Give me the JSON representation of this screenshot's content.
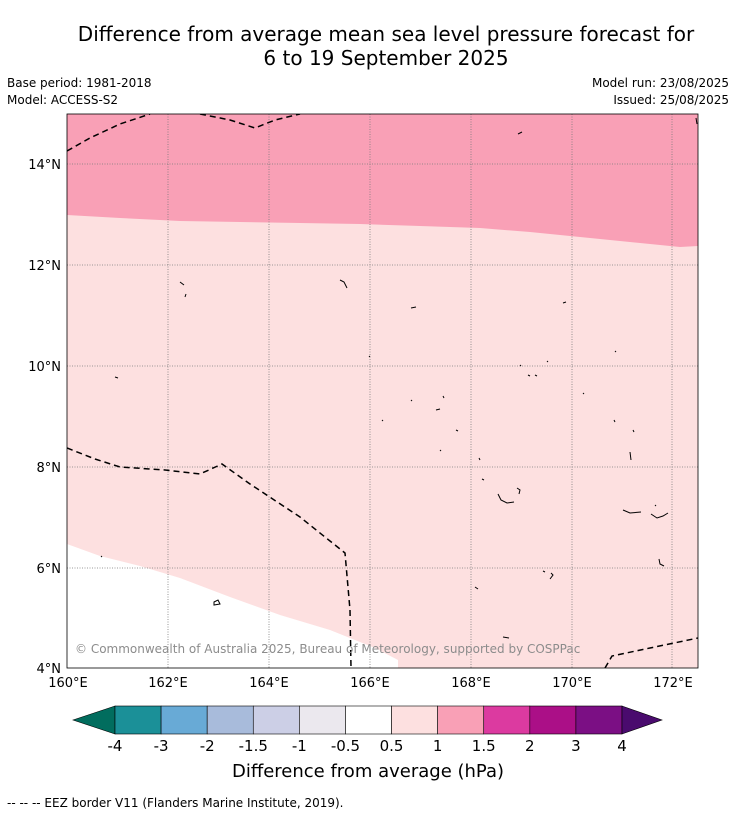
{
  "title_line1": "Difference from average mean sea level pressure forecast for",
  "title_line2": "6 to 19 September 2025",
  "base_period": "Base period: 1981-2018",
  "model": "Model: ACCESS-S2",
  "model_run": "Model run: 23/08/2025",
  "issued": "Issued: 25/08/2025",
  "latitude_labels": [
    "14°N",
    "12°N",
    "10°N",
    "8°N",
    "6°N",
    "4°N"
  ],
  "longitude_labels": [
    "160°E",
    "162°E",
    "164°E",
    "166°E",
    "168°E",
    "170°E",
    "172°E"
  ],
  "copyright": "© Commonwealth of Australia 2025, Bureau of Meteorology, supported by COSPPac",
  "colorbar": {
    "title": "Difference from average (hPa)",
    "tick_labels": [
      "-4",
      "-3",
      "-2",
      "-1.5",
      "-1",
      "-0.5",
      "0.5",
      "1",
      "1.5",
      "2",
      "3",
      "4"
    ],
    "colors": [
      "#1b9098",
      "#68aad6",
      "#a8bbdb",
      "#cccfe6",
      "#ebe8ee",
      "#ffffff",
      "#fde0e0",
      "#f9a0b6",
      "#dc3aa0",
      "#ab0f87",
      "#7b0f84"
    ],
    "under_color": "#016d5e",
    "over_color": "#4a0b6e"
  },
  "map": {
    "zones": [
      {
        "label": "1 to 1.5",
        "color": "#f9a0b6"
      },
      {
        "label": "0.5 to 1",
        "color": "#fde0e0"
      },
      {
        "label": "-0.5 to 0.5",
        "color": "#ffffff"
      }
    ]
  },
  "footer": "--  --  -- EEZ border V11 (Flanders Marine Institute, 2019)."
}
